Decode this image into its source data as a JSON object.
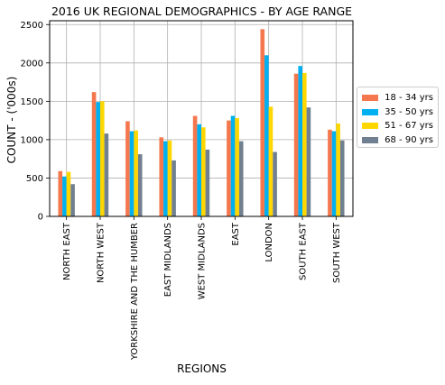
{
  "chart_data": {
    "type": "bar",
    "title": "2016 UK REGIONAL DEMOGRAPHICS - BY AGE RANGE",
    "xlabel": "REGIONS",
    "ylabel": "COUNT - ('000s)",
    "ylim": [
      0,
      2550
    ],
    "yticks": [
      0,
      500,
      1000,
      1500,
      2000,
      2500
    ],
    "grid": true,
    "legend_position": "right",
    "categories": [
      "NORTH EAST",
      "NORTH WEST",
      "YORKSHIRE AND THE HUMBER",
      "EAST MIDLANDS",
      "WEST MIDLANDS",
      "EAST",
      "LONDON",
      "SOUTH EAST",
      "SOUTH WEST"
    ],
    "series": [
      {
        "name": "18 - 34 yrs",
        "color": "#f4774d",
        "values": [
          590,
          1620,
          1240,
          1030,
          1310,
          1250,
          2440,
          1860,
          1130
        ]
      },
      {
        "name": "35 - 50 yrs",
        "color": "#00b0f0",
        "values": [
          520,
          1490,
          1110,
          980,
          1200,
          1310,
          2100,
          1960,
          1110
        ]
      },
      {
        "name": "51 - 67 yrs",
        "color": "#ffd700",
        "values": [
          580,
          1500,
          1120,
          990,
          1160,
          1280,
          1430,
          1870,
          1210
        ]
      },
      {
        "name": "68 - 90 yrs",
        "color": "#708090",
        "values": [
          420,
          1080,
          810,
          730,
          870,
          980,
          840,
          1420,
          990
        ]
      }
    ]
  }
}
